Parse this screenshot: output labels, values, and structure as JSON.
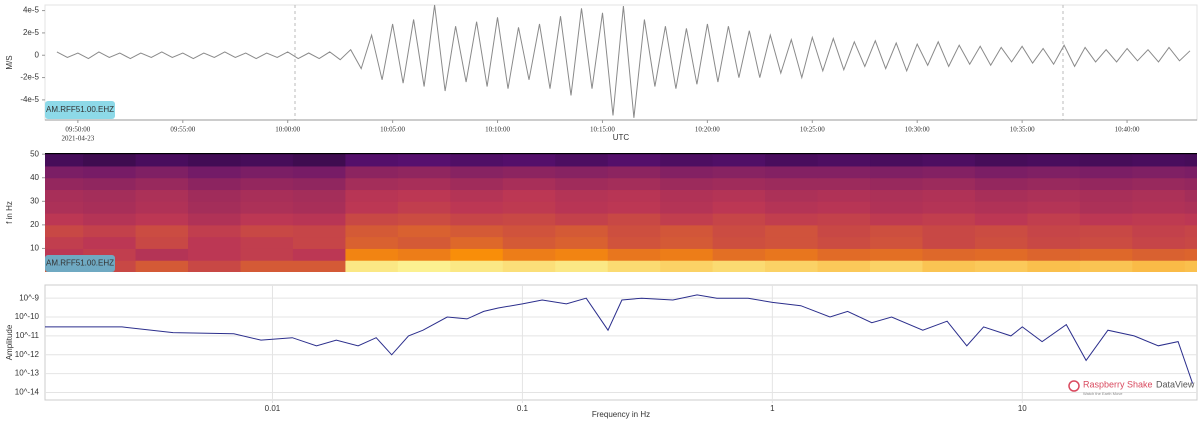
{
  "chart_data": [
    {
      "type": "line",
      "station": "AM.RFF51.00.EHZ",
      "y_label": "M/S",
      "x_label": "UTC",
      "date": "2021-04-23",
      "x": [
        "09:49:00",
        "09:49:30",
        "09:50:00",
        "09:50:30",
        "09:51:00",
        "09:51:30",
        "09:52:00",
        "09:52:30",
        "09:53:00",
        "09:53:30",
        "09:54:00",
        "09:54:30",
        "09:55:00",
        "09:55:30",
        "09:56:00",
        "09:56:30",
        "09:57:00",
        "09:57:30",
        "09:58:00",
        "09:58:30",
        "09:59:00",
        "09:59:30",
        "10:00:00",
        "10:00:30",
        "10:01:00",
        "10:01:30",
        "10:02:00",
        "10:02:30",
        "10:03:00",
        "10:03:30",
        "10:04:00",
        "10:04:30",
        "10:05:00",
        "10:05:30",
        "10:06:00",
        "10:06:30",
        "10:07:00",
        "10:07:30",
        "10:08:00",
        "10:08:30",
        "10:09:00",
        "10:09:30",
        "10:10:00",
        "10:10:30",
        "10:11:00",
        "10:11:30",
        "10:12:00",
        "10:12:30",
        "10:13:00",
        "10:13:30",
        "10:14:00",
        "10:14:30",
        "10:15:00",
        "10:15:30",
        "10:16:00",
        "10:16:30",
        "10:17:00",
        "10:17:30",
        "10:18:00",
        "10:18:30",
        "10:19:00",
        "10:19:30",
        "10:20:00",
        "10:20:30",
        "10:21:00",
        "10:21:30",
        "10:22:00",
        "10:22:30",
        "10:23:00",
        "10:23:30",
        "10:24:00",
        "10:24:30",
        "10:25:00",
        "10:25:30",
        "10:26:00",
        "10:26:30",
        "10:27:00",
        "10:27:30",
        "10:28:00",
        "10:28:30",
        "10:29:00",
        "10:29:30",
        "10:30:00",
        "10:30:30",
        "10:31:00",
        "10:31:30",
        "10:32:00",
        "10:32:30",
        "10:33:00",
        "10:33:30",
        "10:34:00",
        "10:34:30",
        "10:35:00",
        "10:35:30",
        "10:36:00",
        "10:36:30",
        "10:37:00",
        "10:37:30",
        "10:38:00",
        "10:38:30",
        "10:39:00",
        "10:39:30",
        "10:40:00",
        "10:40:30",
        "10:41:00",
        "10:41:30",
        "10:42:00",
        "10:42:30",
        "10:43:00"
      ],
      "series": [
        {
          "color": "#8a8a8a",
          "values": [
            3e-06,
            -2e-06,
            2e-06,
            -3e-06,
            3e-06,
            -2e-06,
            2e-06,
            -3e-06,
            2e-06,
            -2e-06,
            3e-06,
            -2e-06,
            2e-06,
            -3e-06,
            2e-06,
            -2e-06,
            3e-06,
            -2e-06,
            2e-06,
            -3e-06,
            2e-06,
            -2e-06,
            3e-06,
            -3e-06,
            2e-06,
            -3e-06,
            3e-06,
            -4e-06,
            5e-06,
            -1.2e-05,
            1.8e-05,
            -2.2e-05,
            2.8e-05,
            -2.5e-05,
            3.2e-05,
            -2.8e-05,
            4.5e-05,
            -3.2e-05,
            2.6e-05,
            -2.4e-05,
            3e-05,
            -2.8e-05,
            3.4e-05,
            -3e-05,
            2.5e-05,
            -2.2e-05,
            2.8e-05,
            -3e-05,
            3.5e-05,
            -3.6e-05,
            4.2e-05,
            -3e-05,
            3.8e-05,
            -5.4e-05,
            4.4e-05,
            -5.6e-05,
            3.2e-05,
            -2.8e-05,
            2.6e-05,
            -3e-05,
            2.4e-05,
            -2.6e-05,
            2.8e-05,
            -2.4e-05,
            2.6e-05,
            -2e-05,
            2.2e-05,
            -2e-05,
            1.8e-05,
            -1.6e-05,
            1.4e-05,
            -2e-05,
            1.6e-05,
            -1.4e-05,
            1.5e-05,
            -1.3e-05,
            1.2e-05,
            -1e-05,
            1.3e-05,
            -1.2e-05,
            1.1e-05,
            -1.4e-05,
            1e-05,
            -9e-06,
            1.2e-05,
            -1e-05,
            9e-06,
            -8e-06,
            8e-06,
            -9e-06,
            7e-06,
            -6e-06,
            8e-06,
            -7e-06,
            6e-06,
            -8e-06,
            9e-06,
            -1e-05,
            7e-06,
            -6e-06,
            5e-06,
            -6e-06,
            6e-06,
            -5e-06,
            5e-06,
            -6e-06,
            7e-06,
            -5e-06,
            4e-06
          ]
        }
      ],
      "xlim": [
        "09:48:26",
        "10:43:20"
      ],
      "xticks": [
        "09:50:00",
        "09:55:00",
        "10:00:00",
        "10:05:00",
        "10:10:00",
        "10:15:00",
        "10:20:00",
        "10:25:00",
        "10:30:00",
        "10:35:00",
        "10:40:00"
      ],
      "ylim": [
        -5.8e-05,
        4.5e-05
      ],
      "yticks": [
        {
          "value": 4e-05,
          "label": "4e-5"
        },
        {
          "value": 2e-05,
          "label": "2e-5"
        },
        0,
        {
          "value": -2e-05,
          "label": "-2e-5"
        },
        {
          "value": -4e-05,
          "label": "-4e-5"
        }
      ]
    },
    {
      "type": "heatmap",
      "station": "AM.RFF51.00.EHZ",
      "y_label": "f in Hz",
      "colormap": "inferno",
      "x": [
        "09:49:00",
        "09:51:30",
        "09:54:00",
        "09:56:30",
        "09:59:00",
        "10:01:30",
        "10:04:00",
        "10:06:30",
        "10:09:00",
        "10:11:30",
        "10:14:00",
        "10:16:30",
        "10:19:00",
        "10:21:30",
        "10:24:00",
        "10:26:30",
        "10:29:00",
        "10:31:30",
        "10:34:00",
        "10:36:30",
        "10:39:00",
        "10:41:30",
        "10:44:00"
      ],
      "y": [
        2.5,
        7.5,
        12.5,
        17.5,
        22.5,
        27.5,
        32.5,
        37.5,
        42.5,
        47.5
      ],
      "values": [
        [
          0.6,
          0.55,
          0.6,
          0.55,
          0.6,
          0.6,
          0.95,
          0.97,
          0.95,
          0.93,
          0.95,
          0.92,
          0.9,
          0.92,
          0.9,
          0.88,
          0.9,
          0.87,
          0.88,
          0.86,
          0.87,
          0.85,
          0.86
        ],
        [
          0.5,
          0.52,
          0.48,
          0.5,
          0.52,
          0.5,
          0.72,
          0.7,
          0.75,
          0.7,
          0.72,
          0.68,
          0.7,
          0.66,
          0.68,
          0.65,
          0.66,
          0.64,
          0.65,
          0.63,
          0.64,
          0.62,
          0.63
        ],
        [
          0.52,
          0.5,
          0.55,
          0.5,
          0.52,
          0.54,
          0.62,
          0.6,
          0.64,
          0.6,
          0.62,
          0.58,
          0.6,
          0.57,
          0.58,
          0.56,
          0.58,
          0.55,
          0.57,
          0.55,
          0.56,
          0.54,
          0.55
        ],
        [
          0.55,
          0.53,
          0.56,
          0.52,
          0.55,
          0.54,
          0.6,
          0.62,
          0.6,
          0.58,
          0.6,
          0.57,
          0.59,
          0.56,
          0.58,
          0.55,
          0.57,
          0.55,
          0.56,
          0.54,
          0.55,
          0.53,
          0.54
        ],
        [
          0.5,
          0.48,
          0.5,
          0.47,
          0.5,
          0.49,
          0.55,
          0.56,
          0.54,
          0.55,
          0.53,
          0.55,
          0.52,
          0.54,
          0.52,
          0.53,
          0.51,
          0.52,
          0.5,
          0.52,
          0.5,
          0.51,
          0.5
        ],
        [
          0.46,
          0.45,
          0.47,
          0.44,
          0.46,
          0.45,
          0.5,
          0.52,
          0.5,
          0.51,
          0.49,
          0.5,
          0.48,
          0.5,
          0.48,
          0.49,
          0.47,
          0.48,
          0.47,
          0.48,
          0.46,
          0.47,
          0.46
        ],
        [
          0.45,
          0.44,
          0.46,
          0.43,
          0.45,
          0.44,
          0.49,
          0.5,
          0.48,
          0.5,
          0.48,
          0.49,
          0.47,
          0.48,
          0.46,
          0.47,
          0.46,
          0.47,
          0.45,
          0.46,
          0.45,
          0.46,
          0.44
        ],
        [
          0.4,
          0.39,
          0.41,
          0.38,
          0.4,
          0.39,
          0.44,
          0.45,
          0.43,
          0.45,
          0.43,
          0.44,
          0.42,
          0.43,
          0.42,
          0.42,
          0.41,
          0.42,
          0.4,
          0.41,
          0.4,
          0.41,
          0.4
        ],
        [
          0.34,
          0.33,
          0.35,
          0.32,
          0.34,
          0.33,
          0.38,
          0.39,
          0.37,
          0.38,
          0.37,
          0.38,
          0.36,
          0.37,
          0.36,
          0.36,
          0.35,
          0.36,
          0.34,
          0.35,
          0.34,
          0.35,
          0.34
        ],
        [
          0.2,
          0.18,
          0.21,
          0.19,
          0.2,
          0.18,
          0.24,
          0.25,
          0.23,
          0.24,
          0.22,
          0.24,
          0.22,
          0.23,
          0.21,
          0.22,
          0.21,
          0.22,
          0.2,
          0.21,
          0.2,
          0.21,
          0.2
        ]
      ],
      "xlim": [
        "09:48:26",
        "10:43:20"
      ],
      "ylim": [
        0,
        50.5
      ],
      "yticks": [
        10,
        20,
        30,
        40,
        50
      ]
    },
    {
      "type": "line",
      "y_label": "Amplitude",
      "x_label": "Frequency in Hz",
      "log_x": true,
      "log_y": true,
      "grid": true,
      "x": [
        0.00123,
        0.0025,
        0.004,
        0.007,
        0.009,
        0.012,
        0.015,
        0.018,
        0.022,
        0.026,
        0.03,
        0.035,
        0.04,
        0.05,
        0.06,
        0.07,
        0.08,
        0.1,
        0.12,
        0.15,
        0.18,
        0.22,
        0.25,
        0.3,
        0.4,
        0.5,
        0.6,
        0.8,
        1,
        1.3,
        1.7,
        2,
        2.5,
        3,
        4,
        5,
        6,
        7,
        9,
        10,
        12,
        15,
        18,
        22,
        28,
        35,
        42,
        48
      ],
      "series": [
        {
          "color": "#2b2e8c",
          "values": [
            3e-11,
            3e-11,
            1.5e-11,
            1.3e-11,
            6e-12,
            8e-12,
            3e-12,
            6e-12,
            3e-12,
            8e-12,
            1e-12,
            1e-11,
            2e-11,
            1e-10,
            8e-11,
            2e-10,
            3e-10,
            5e-10,
            8e-10,
            5e-10,
            1e-09,
            2e-11,
            8e-10,
            1e-09,
            8e-10,
            1.5e-09,
            1e-09,
            1e-09,
            6e-10,
            4e-10,
            1e-10,
            2e-10,
            5e-11,
            1e-10,
            2e-11,
            6e-11,
            3e-12,
            3e-11,
            1e-11,
            3e-11,
            5e-12,
            4e-11,
            5e-13,
            2e-11,
            1e-11,
            3e-12,
            5e-12,
            3e-14
          ]
        }
      ],
      "xlim": [
        0.00123,
        50
      ],
      "ylim": [
        4e-15,
        5e-09
      ],
      "xticks": [
        0.01,
        0.1,
        1,
        10
      ],
      "yticks": [
        {
          "value": 1e-09,
          "label": "10^-9"
        },
        {
          "value": 1e-10,
          "label": "10^-10"
        },
        {
          "value": 1e-11,
          "label": "10^-11"
        },
        {
          "value": 1e-12,
          "label": "10^-12"
        },
        {
          "value": 1e-13,
          "label": "10^-13"
        },
        {
          "value": 1e-14,
          "label": "10^-14"
        }
      ]
    }
  ],
  "branding": {
    "name": "Raspberry Shake",
    "product": "DataView",
    "tagline": "Watch the Earth Move"
  }
}
